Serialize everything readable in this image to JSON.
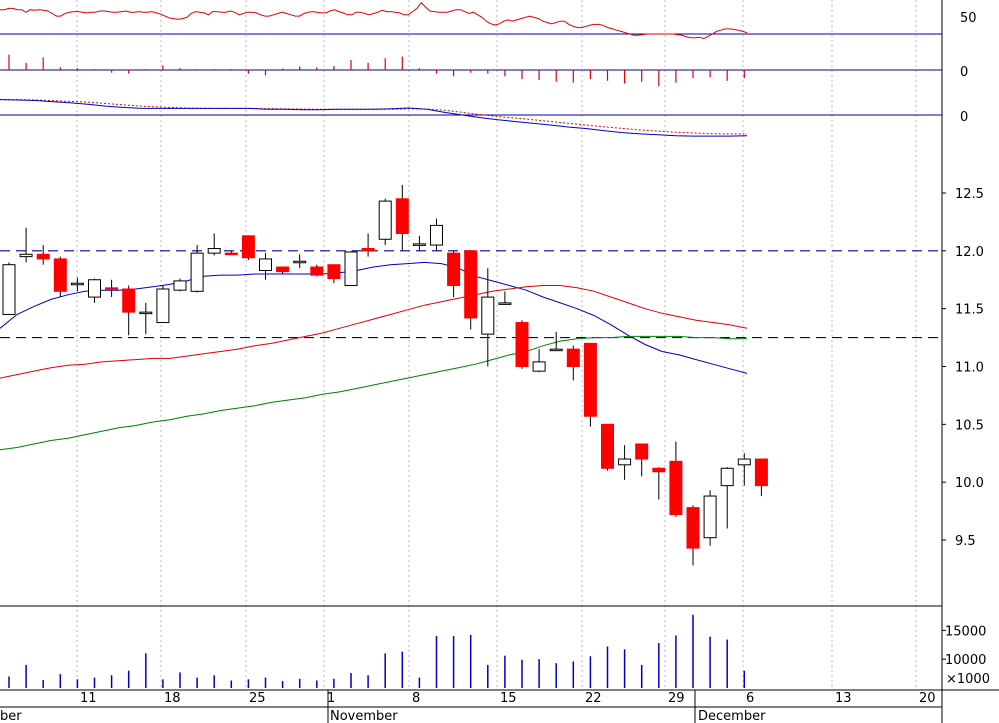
{
  "chart_data": {
    "type": "candlestick",
    "x_labels": [
      {
        "date": "Oct 10",
        "label": "ber"
      },
      {
        "date": "Oct 11",
        "label": "11"
      },
      {
        "date": "Oct 18",
        "label": "18"
      },
      {
        "date": "Oct 25",
        "label": "25"
      },
      {
        "date": "Nov 1",
        "label": "1"
      },
      {
        "date": "Nov 1",
        "label": "November"
      },
      {
        "date": "Nov 8",
        "label": "8"
      },
      {
        "date": "Nov 15",
        "label": "15"
      },
      {
        "date": "Nov 22",
        "label": "22"
      },
      {
        "date": "Nov 29",
        "label": "29"
      },
      {
        "date": "Dec 1",
        "label": "December"
      },
      {
        "date": "Dec 6",
        "label": "6"
      },
      {
        "date": "Dec 13",
        "label": "13"
      },
      {
        "date": "Dec 20",
        "label": "20"
      }
    ],
    "price_panel": {
      "y_ticks": [
        9.5,
        10.0,
        10.5,
        11.0,
        11.5,
        12.0,
        12.5
      ],
      "y_tick_labels": [
        "9.5",
        "10.0",
        "10.5",
        "11.0",
        "11.5",
        "12.0",
        "12.5"
      ],
      "ylim": [
        9.2,
        12.85
      ],
      "hlines": [
        12.0,
        11.25
      ],
      "candles": [
        {
          "date": "Oct 7",
          "o": 11.45,
          "h": 11.9,
          "l": 11.45,
          "c": 11.88
        },
        {
          "date": "Oct 8",
          "o": 11.95,
          "h": 12.2,
          "l": 11.9,
          "c": 11.97
        },
        {
          "date": "Oct 9",
          "o": 11.97,
          "h": 12.05,
          "l": 11.88,
          "c": 11.93
        },
        {
          "date": "Oct 10",
          "o": 11.93,
          "h": 11.95,
          "l": 11.6,
          "c": 11.65
        },
        {
          "date": "Oct 11",
          "o": 11.72,
          "h": 11.77,
          "l": 11.65,
          "c": 11.72
        },
        {
          "date": "Oct 12",
          "o": 11.6,
          "h": 11.76,
          "l": 11.55,
          "c": 11.75
        },
        {
          "date": "Oct 13",
          "o": 11.68,
          "h": 11.75,
          "l": 11.6,
          "c": 11.67
        },
        {
          "date": "Oct 14",
          "o": 11.67,
          "h": 11.7,
          "l": 11.27,
          "c": 11.47
        },
        {
          "date": "Oct 15",
          "o": 11.47,
          "h": 11.55,
          "l": 11.28,
          "c": 11.47
        },
        {
          "date": "Oct 16",
          "o": 11.38,
          "h": 11.7,
          "l": 11.38,
          "c": 11.67
        },
        {
          "date": "Oct 17",
          "o": 11.66,
          "h": 11.76,
          "l": 11.65,
          "c": 11.74
        },
        {
          "date": "Oct 18",
          "o": 11.65,
          "h": 12.05,
          "l": 11.64,
          "c": 11.98
        },
        {
          "date": "Oct 19",
          "o": 11.98,
          "h": 12.15,
          "l": 11.96,
          "c": 12.02
        },
        {
          "date": "Oct 20",
          "o": 11.98,
          "h": 12.0,
          "l": 11.97,
          "c": 11.97
        },
        {
          "date": "Oct 21",
          "o": 12.13,
          "h": 12.13,
          "l": 11.92,
          "c": 11.94
        },
        {
          "date": "Oct 22",
          "o": 11.83,
          "h": 11.98,
          "l": 11.75,
          "c": 11.93
        },
        {
          "date": "Oct 23",
          "o": 11.86,
          "h": 11.86,
          "l": 11.8,
          "c": 11.82
        },
        {
          "date": "Oct 24",
          "o": 11.9,
          "h": 11.97,
          "l": 11.85,
          "c": 11.91
        },
        {
          "date": "Oct 25",
          "o": 11.86,
          "h": 11.88,
          "l": 11.78,
          "c": 11.79
        },
        {
          "date": "Oct 26",
          "o": 11.88,
          "h": 11.88,
          "l": 11.72,
          "c": 11.76
        },
        {
          "date": "Oct 27",
          "o": 11.7,
          "h": 12.0,
          "l": 11.7,
          "c": 11.99
        },
        {
          "date": "Oct 28",
          "o": 12.02,
          "h": 12.15,
          "l": 11.95,
          "c": 12.0
        },
        {
          "date": "Oct 29",
          "o": 12.1,
          "h": 12.45,
          "l": 12.05,
          "c": 12.43
        },
        {
          "date": "Oct 30",
          "o": 12.45,
          "h": 12.57,
          "l": 12.0,
          "c": 12.15
        },
        {
          "date": "Oct 31",
          "o": 12.06,
          "h": 12.13,
          "l": 12.0,
          "c": 12.06
        },
        {
          "date": "Nov 1",
          "o": 12.05,
          "h": 12.28,
          "l": 12.0,
          "c": 12.22
        },
        {
          "date": "Nov 2",
          "o": 11.98,
          "h": 12.0,
          "l": 11.6,
          "c": 11.7
        },
        {
          "date": "Nov 3",
          "o": 12.0,
          "h": 12.0,
          "l": 11.32,
          "c": 11.42
        },
        {
          "date": "Nov 4",
          "o": 11.28,
          "h": 11.85,
          "l": 11.0,
          "c": 11.6
        },
        {
          "date": "Nov 5",
          "o": 11.55,
          "h": 11.65,
          "l": 11.55,
          "c": 11.55
        },
        {
          "date": "Nov 6",
          "o": 11.38,
          "h": 11.4,
          "l": 10.98,
          "c": 11.0
        },
        {
          "date": "Nov 7",
          "o": 10.96,
          "h": 11.15,
          "l": 10.95,
          "c": 11.04
        },
        {
          "date": "Nov 8",
          "o": 11.15,
          "h": 11.3,
          "l": 11.15,
          "c": 11.15
        },
        {
          "date": "Nov 9",
          "o": 11.15,
          "h": 11.18,
          "l": 10.88,
          "c": 11.0
        },
        {
          "date": "Nov 10",
          "o": 11.2,
          "h": 11.2,
          "l": 10.48,
          "c": 10.57
        },
        {
          "date": "Nov 11",
          "o": 10.5,
          "h": 10.5,
          "l": 10.1,
          "c": 10.12
        },
        {
          "date": "Nov 12",
          "o": 10.15,
          "h": 10.32,
          "l": 10.02,
          "c": 10.2
        },
        {
          "date": "Nov 13",
          "o": 10.33,
          "h": 10.33,
          "l": 10.05,
          "c": 10.2
        },
        {
          "date": "Nov 14",
          "o": 10.12,
          "h": 10.13,
          "l": 9.85,
          "c": 10.09
        },
        {
          "date": "Nov 15",
          "o": 10.18,
          "h": 10.35,
          "l": 9.7,
          "c": 9.72
        },
        {
          "date": "Nov 16",
          "o": 9.78,
          "h": 9.8,
          "l": 9.28,
          "c": 9.43
        },
        {
          "date": "Nov 17",
          "o": 9.52,
          "h": 9.93,
          "l": 9.45,
          "c": 9.88
        },
        {
          "date": "Nov 18",
          "o": 9.97,
          "h": 10.13,
          "l": 9.6,
          "c": 10.12
        },
        {
          "date": "Nov 19",
          "o": 10.15,
          "h": 10.25,
          "l": 9.97,
          "c": 10.2
        },
        {
          "date": "Nov 20",
          "o": 10.2,
          "h": 10.2,
          "l": 9.88,
          "c": 9.97
        }
      ],
      "series": [
        {
          "color": "#0000c0",
          "values": [
            11.33,
            11.45,
            11.52,
            11.58,
            11.62,
            11.65,
            11.66,
            11.66,
            11.67,
            11.69,
            11.71,
            11.74,
            11.78,
            11.79,
            11.79,
            11.8,
            11.8,
            11.8,
            11.8,
            11.8,
            11.81,
            11.83,
            11.86,
            11.88,
            11.89,
            11.9,
            11.89,
            11.85,
            11.78,
            11.74,
            11.7,
            11.66,
            11.6,
            11.55,
            11.5,
            11.44,
            11.36,
            11.27,
            11.19,
            11.13,
            11.1,
            11.06,
            11.02,
            10.98,
            10.94
          ]
        },
        {
          "color": "#e00000",
          "values": [
            10.9,
            10.93,
            10.96,
            10.99,
            11.01,
            11.02,
            11.04,
            11.05,
            11.06,
            11.07,
            11.07,
            11.09,
            11.11,
            11.13,
            11.15,
            11.18,
            11.2,
            11.23,
            11.26,
            11.29,
            11.33,
            11.37,
            11.41,
            11.45,
            11.49,
            11.53,
            11.56,
            11.59,
            11.62,
            11.65,
            11.67,
            11.69,
            11.7,
            11.7,
            11.68,
            11.65,
            11.6,
            11.55,
            11.5,
            11.46,
            11.43,
            11.4,
            11.38,
            11.36,
            11.33
          ]
        },
        {
          "color": "#008000",
          "values": [
            10.28,
            10.3,
            10.33,
            10.36,
            10.38,
            10.41,
            10.44,
            10.47,
            10.49,
            10.52,
            10.54,
            10.57,
            10.59,
            10.62,
            10.64,
            10.66,
            10.69,
            10.71,
            10.73,
            10.76,
            10.78,
            10.81,
            10.84,
            10.87,
            10.9,
            10.93,
            10.96,
            10.99,
            11.02,
            11.06,
            11.1,
            11.13,
            11.18,
            11.22,
            11.24,
            11.25,
            11.25,
            11.26,
            11.26,
            11.26,
            11.26,
            11.25,
            11.25,
            11.24,
            11.24
          ]
        }
      ]
    },
    "oscillator_panel": {
      "y_tick_label": "50",
      "ylim": [
        -10,
        120
      ],
      "hline": 50,
      "values": [
        88,
        88,
        90,
        90,
        88,
        88,
        84,
        88,
        87,
        88,
        87,
        86,
        82,
        78,
        78,
        82,
        84,
        85,
        85,
        84,
        83,
        84,
        84,
        86,
        86,
        85,
        84,
        84,
        85,
        86,
        84,
        84,
        85,
        84,
        84,
        85,
        83,
        81,
        78,
        75,
        74,
        73,
        74,
        76,
        82,
        85,
        84,
        83,
        80,
        85,
        85,
        84,
        84,
        86,
        84,
        80,
        82,
        84,
        84,
        83,
        80,
        78,
        78,
        80,
        82,
        84,
        82,
        80,
        78,
        78,
        82,
        84,
        85,
        84,
        83,
        83,
        86,
        88,
        85,
        83,
        80,
        80,
        84,
        84,
        82,
        80,
        82,
        84,
        87,
        85,
        85,
        84,
        83,
        80,
        80,
        85,
        90,
        99,
        92,
        86,
        85,
        84,
        84,
        84,
        86,
        88,
        88,
        85,
        82,
        84,
        80,
        76,
        70,
        66,
        64,
        66,
        70,
        72,
        70,
        72,
        74,
        76,
        78,
        76,
        74,
        70,
        68,
        66,
        68,
        70,
        70,
        65,
        62,
        60,
        60,
        62,
        64,
        65,
        65,
        63,
        60,
        58,
        56,
        54,
        52,
        50,
        48,
        48,
        49,
        50,
        50,
        50,
        50,
        50,
        50,
        50,
        49,
        48,
        46,
        44,
        44,
        45,
        43,
        46,
        50,
        54,
        56,
        58,
        58,
        57,
        56,
        54,
        52
      ]
    },
    "histogram_panel": {
      "y_tick_label": "0",
      "ylim": [
        -1,
        1
      ],
      "values": [
        0.85,
        0.4,
        0.7,
        0.15,
        0.1,
        0.05,
        -0.15,
        -0.2,
        0.05,
        0.25,
        0.1,
        0.05,
        0.05,
        0.05,
        -0.2,
        -0.3,
        0.08,
        0.2,
        0.15,
        0.22,
        0.55,
        0.4,
        0.65,
        0.75,
        0.1,
        -0.2,
        -0.35,
        -0.15,
        -0.2,
        -0.35,
        -0.5,
        -0.55,
        -0.65,
        -0.7,
        -0.5,
        -0.6,
        -0.75,
        -0.65,
        -0.9,
        -0.7,
        -0.45,
        -0.4,
        -0.6,
        -0.45
      ]
    },
    "macd_panel": {
      "y_tick_label": "0",
      "ylim": [
        -1.2,
        1.2
      ],
      "signal_color": "#e00000",
      "macd_color": "#0000c0",
      "macd": [
        0.7,
        0.68,
        0.66,
        0.6,
        0.55,
        0.48,
        0.4,
        0.34,
        0.3,
        0.3,
        0.3,
        0.3,
        0.3,
        0.3,
        0.3,
        0.26,
        0.26,
        0.24,
        0.24,
        0.26,
        0.26,
        0.26,
        0.28,
        0.32,
        0.26,
        0.12,
        0.0,
        -0.12,
        -0.22,
        -0.3,
        -0.38,
        -0.46,
        -0.55,
        -0.62,
        -0.72,
        -0.8,
        -0.86,
        -0.9,
        -0.94,
        -0.96,
        -0.96,
        -0.96,
        -0.94
      ],
      "signal": [
        0.7,
        0.7,
        0.68,
        0.65,
        0.62,
        0.58,
        0.52,
        0.46,
        0.4,
        0.36,
        0.33,
        0.31,
        0.3,
        0.3,
        0.3,
        0.29,
        0.28,
        0.27,
        0.26,
        0.26,
        0.26,
        0.26,
        0.26,
        0.28,
        0.27,
        0.22,
        0.12,
        0.02,
        -0.07,
        -0.14,
        -0.22,
        -0.3,
        -0.38,
        -0.46,
        -0.54,
        -0.61,
        -0.68,
        -0.73,
        -0.78,
        -0.82,
        -0.85,
        -0.86,
        -0.86
      ]
    },
    "volume_panel": {
      "multiplier_label": "×1000",
      "y_ticks": [
        10000,
        15000
      ],
      "y_tick_labels": [
        "10000",
        "15000"
      ],
      "ylim": [
        5000,
        18000
      ],
      "values": [
        7000,
        9000,
        6400,
        7400,
        6500,
        6800,
        7200,
        8000,
        11000,
        6500,
        7700,
        6800,
        7200,
        6300,
        6500,
        6800,
        6200,
        6600,
        6300,
        6600,
        7600,
        7200,
        11000,
        11300,
        6800,
        14000,
        14000,
        14200,
        9000,
        10600,
        9900,
        10000,
        9300,
        9600,
        10500,
        12200,
        11700,
        9000,
        12800,
        14100,
        17700,
        13900,
        13400,
        8000
      ],
      "bar_color": "#0000c0"
    },
    "colors": {
      "up_candle": "#ffffff",
      "down_candle": "#ff0000",
      "hline": "#0000a0",
      "grid": "#bbbbbb"
    }
  }
}
